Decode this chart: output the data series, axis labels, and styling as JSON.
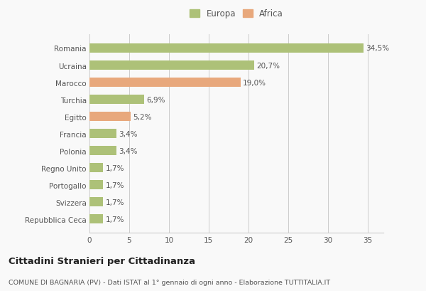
{
  "categories": [
    "Repubblica Ceca",
    "Svizzera",
    "Portogallo",
    "Regno Unito",
    "Polonia",
    "Francia",
    "Egitto",
    "Turchia",
    "Marocco",
    "Ucraina",
    "Romania"
  ],
  "values": [
    1.7,
    1.7,
    1.7,
    1.7,
    3.4,
    3.4,
    5.2,
    6.9,
    19.0,
    20.7,
    34.5
  ],
  "labels": [
    "1,7%",
    "1,7%",
    "1,7%",
    "1,7%",
    "3,4%",
    "3,4%",
    "5,2%",
    "6,9%",
    "19,0%",
    "20,7%",
    "34,5%"
  ],
  "colors": [
    "#adc178",
    "#adc178",
    "#adc178",
    "#adc178",
    "#adc178",
    "#adc178",
    "#e8a87c",
    "#adc178",
    "#e8a87c",
    "#adc178",
    "#adc178"
  ],
  "europa_color": "#adc178",
  "africa_color": "#e8a87c",
  "xlim": [
    0,
    37
  ],
  "xticks": [
    0,
    5,
    10,
    15,
    20,
    25,
    30,
    35
  ],
  "title": "Cittadini Stranieri per Cittadinanza",
  "subtitle": "COMUNE DI BAGNARIA (PV) - Dati ISTAT al 1° gennaio di ogni anno - Elaborazione TUTTITALIA.IT",
  "bg_color": "#f9f9f9",
  "grid_color": "#cccccc",
  "bar_height": 0.55
}
